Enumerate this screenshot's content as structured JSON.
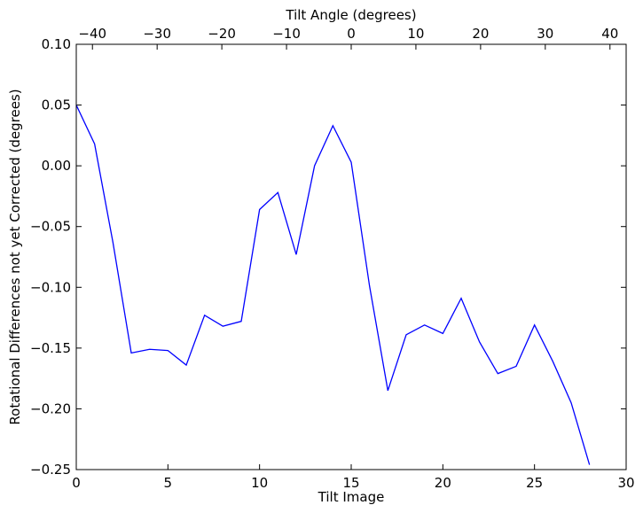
{
  "chart_data": {
    "type": "line",
    "xlabel": "Tilt Image",
    "ylabel": "Rotational Differences not yet Corrected (degrees)",
    "top_xlabel": "Tilt Angle (degrees)",
    "xlim": [
      0,
      30
    ],
    "ylim": [
      -0.25,
      0.1
    ],
    "top_xlim": [
      -42.5,
      42.5
    ],
    "x_ticks": [
      0,
      5,
      10,
      15,
      20,
      25,
      30
    ],
    "y_ticks": [
      -0.25,
      -0.2,
      -0.15,
      -0.1,
      -0.05,
      0.0,
      0.05,
      0.1
    ],
    "top_x_ticks": [
      -40,
      -30,
      -20,
      -10,
      0,
      10,
      20,
      30,
      40
    ],
    "x_tick_labels": [
      "0",
      "5",
      "10",
      "15",
      "20",
      "25",
      "30"
    ],
    "y_tick_labels": [
      "−0.25",
      "−0.20",
      "−0.15",
      "−0.10",
      "−0.05",
      "0.00",
      "0.05",
      "0.10"
    ],
    "top_x_tick_labels": [
      "−40",
      "−30",
      "−20",
      "−10",
      "0",
      "10",
      "20",
      "30",
      "40"
    ],
    "grid": false,
    "line_color": "#0000ff",
    "series": [
      {
        "x": [
          0,
          1,
          2,
          3,
          4,
          5,
          6,
          7,
          8,
          9,
          10,
          11,
          12,
          13,
          14,
          15,
          16,
          17,
          18,
          19,
          20,
          21,
          22,
          23,
          24,
          25,
          26,
          27,
          28
        ],
        "values": [
          0.05,
          0.018,
          -0.063,
          -0.154,
          -0.151,
          -0.152,
          -0.164,
          -0.123,
          -0.132,
          -0.128,
          -0.036,
          -0.022,
          -0.073,
          0.0,
          0.033,
          0.003,
          -0.099,
          -0.185,
          -0.139,
          -0.131,
          -0.138,
          -0.109,
          -0.145,
          -0.171,
          -0.165,
          -0.131,
          -0.161,
          -0.195,
          -0.246
        ]
      }
    ]
  }
}
